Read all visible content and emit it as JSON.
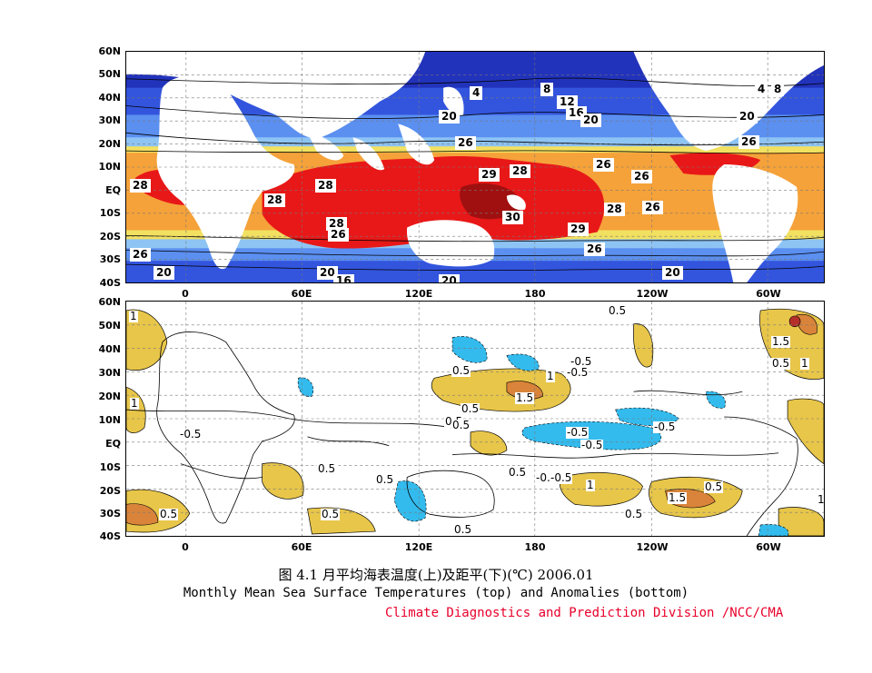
{
  "figure": {
    "caption_cn": "图 4.1   月平均海表温度(上)及距平(下)(℃)      2006.01",
    "caption_en": "Monthly Mean Sea Surface Temperatures (top)  and Anomalies (bottom)",
    "credit": "Climate Diagnostics and Prediction Division /NCC/CMA",
    "credit_color": "#e8002a"
  },
  "axes": {
    "lat_labels": [
      "60N",
      "50N",
      "40N",
      "30N",
      "20N",
      "10N",
      "EQ",
      "10S",
      "20S",
      "30S",
      "40S"
    ],
    "lon_labels": [
      "0",
      "60E",
      "120E",
      "180",
      "120W",
      "60W"
    ]
  },
  "top_panel": {
    "title": "Monthly Mean Sea Surface Temperatures",
    "colors": {
      "cold_dark": "#2233bb",
      "cold": "#3355dd",
      "cool": "#5b8ff0",
      "mild": "#8ec4f4",
      "teal": "#33bbee",
      "warm_yellow": "#f2e060",
      "warm_orange": "#f5a23a",
      "hot": "#e81818",
      "hottest": "#a01010",
      "land": "#ffffff"
    },
    "contour_labels": [
      "4",
      "8",
      "12",
      "16",
      "20",
      "20",
      "26",
      "29",
      "28",
      "26",
      "26",
      "28",
      "28",
      "28",
      "28",
      "30",
      "28",
      "26",
      "29",
      "26",
      "26",
      "20",
      "20",
      "20",
      "4",
      "8",
      "20",
      "26",
      "26",
      "16",
      "20"
    ]
  },
  "bottom_panel": {
    "title": "Anomalies",
    "colors": {
      "pos_1": "#e8c64a",
      "pos_2": "#d9843a",
      "pos_3": "#b5302a",
      "neg_1": "#33bbee",
      "neg_2": "#1166cc",
      "land": "#ffffff"
    },
    "contour_labels": [
      "1",
      "0.5",
      "-0.5",
      "1",
      "-0.5",
      "0.5",
      "1",
      "1.5",
      "0.5",
      "0.5",
      "-0.5",
      "0.5",
      "-0.5",
      "-0.5",
      "1.5",
      "0.5",
      "1",
      "0.5",
      "-0.5",
      "0.5",
      "0.5",
      "0.5",
      "-0.5",
      "-0.5",
      "1",
      "1.5",
      "0.5",
      "0.5",
      "0.5",
      "0.5",
      "1"
    ]
  }
}
